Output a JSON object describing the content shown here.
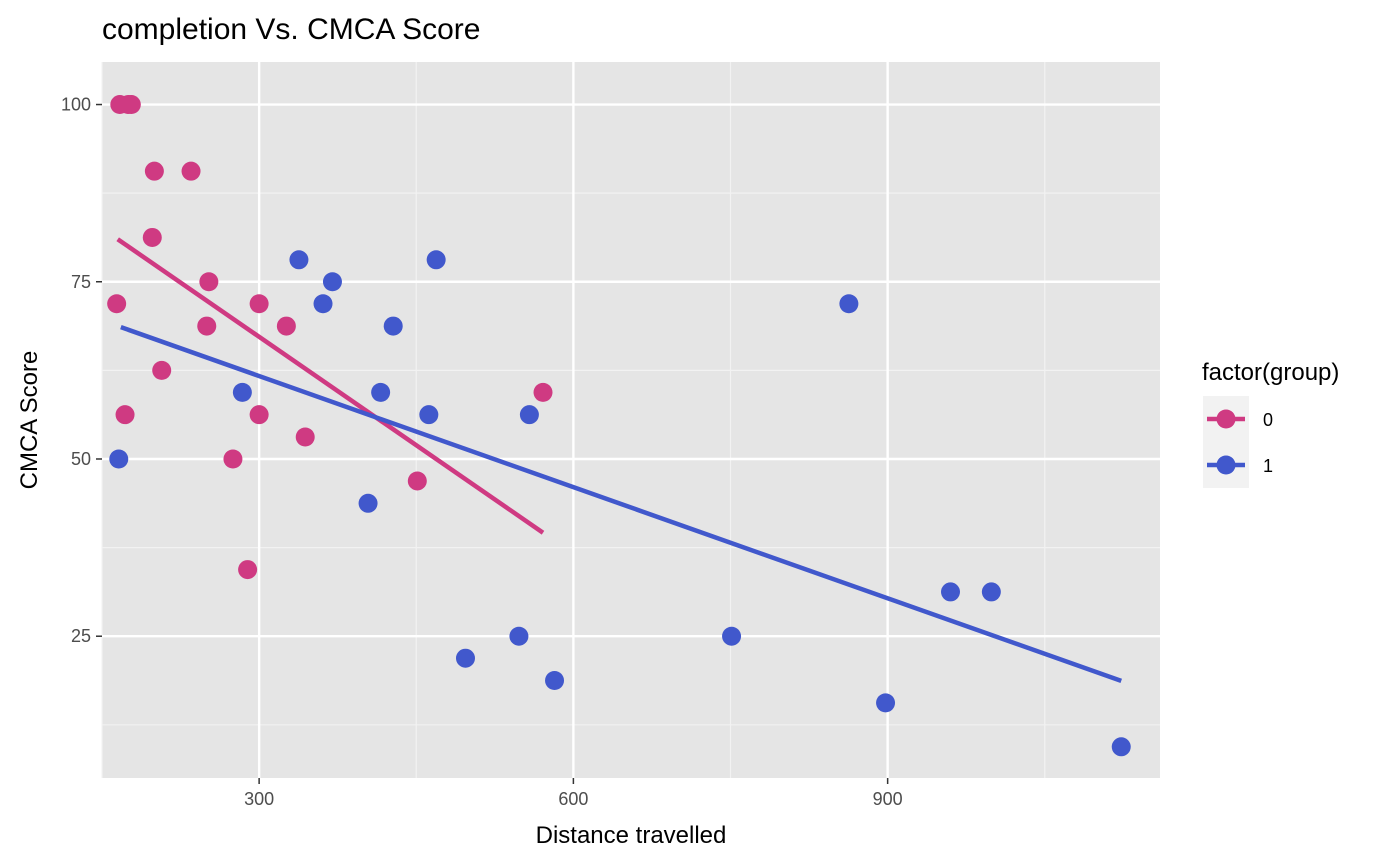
{
  "chart_data": {
    "type": "scatter",
    "title": "completion Vs. CMCA Score",
    "xlabel": "Distance travelled",
    "ylabel": "CMCA Score",
    "xlim": [
      150,
      1160
    ],
    "ylim": [
      5,
      106
    ],
    "x_ticks": [
      300,
      600,
      900
    ],
    "y_ticks": [
      25,
      50,
      75,
      100
    ],
    "x_minor": [
      150,
      450,
      750,
      1050
    ],
    "y_minor": [
      12.5,
      37.5,
      62.5,
      87.5
    ],
    "grid": true,
    "panel_background": "#e5e5e5",
    "legend": {
      "title": "factor(group)",
      "position": "right"
    },
    "series": [
      {
        "name": "0",
        "color": "#cf3a82",
        "points": [
          [
            167,
            100
          ],
          [
            175,
            100
          ],
          [
            178,
            100
          ],
          [
            200,
            90.6
          ],
          [
            235,
            90.6
          ],
          [
            198,
            81.25
          ],
          [
            164,
            71.9
          ],
          [
            300,
            71.9
          ],
          [
            252,
            75
          ],
          [
            250,
            68.75
          ],
          [
            326,
            68.75
          ],
          [
            207,
            62.5
          ],
          [
            172,
            56.25
          ],
          [
            300,
            56.25
          ],
          [
            344,
            53.1
          ],
          [
            275,
            50
          ],
          [
            451,
            46.9
          ],
          [
            289,
            34.4
          ],
          [
            571,
            59.4
          ]
        ],
        "fit": [
          [
            165,
            81
          ],
          [
            571,
            39.6
          ]
        ]
      },
      {
        "name": "1",
        "color": "#4158cc",
        "points": [
          [
            166,
            50
          ],
          [
            284,
            59.4
          ],
          [
            338,
            78.1
          ],
          [
            469,
            78.1
          ],
          [
            370,
            75
          ],
          [
            361,
            71.9
          ],
          [
            428,
            68.75
          ],
          [
            416,
            59.4
          ],
          [
            462,
            56.25
          ],
          [
            558,
            56.25
          ],
          [
            404,
            43.75
          ],
          [
            497,
            21.9
          ],
          [
            548,
            25
          ],
          [
            582,
            18.75
          ],
          [
            751,
            25
          ],
          [
            863,
            71.9
          ],
          [
            960,
            31.25
          ],
          [
            999,
            31.25
          ],
          [
            898,
            15.6
          ],
          [
            1123,
            9.4
          ]
        ],
        "fit": [
          [
            168,
            68.6
          ],
          [
            1123,
            18.7
          ]
        ]
      }
    ]
  }
}
